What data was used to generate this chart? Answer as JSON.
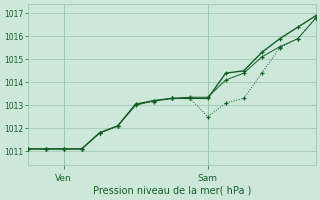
{
  "title": "",
  "xlabel": "Pression niveau de la mer( hPa )",
  "ylabel": "",
  "bg_color": "#cce8d8",
  "grid_color": "#99c4aa",
  "line_color": "#1a5c2a",
  "ylim": [
    1010.4,
    1017.4
  ],
  "yticks": [
    1011,
    1012,
    1013,
    1014,
    1015,
    1016,
    1017
  ],
  "xtick_positions": [
    12,
    60
  ],
  "xtick_labels": [
    "Ven",
    "Sam"
  ],
  "xlim": [
    0,
    96
  ],
  "series1": {
    "x": [
      0,
      6,
      12,
      18,
      24,
      30,
      36,
      42,
      48,
      54,
      60,
      66,
      72,
      78,
      84,
      90,
      96
    ],
    "y": [
      1011.1,
      1011.1,
      1011.1,
      1011.1,
      1011.8,
      1012.1,
      1013.05,
      1013.15,
      1013.3,
      1013.3,
      1012.5,
      1013.1,
      1013.3,
      1014.4,
      1015.5,
      1015.9,
      1016.8
    ]
  },
  "series2": {
    "x": [
      0,
      6,
      12,
      18,
      24,
      30,
      36,
      42,
      48,
      54,
      60,
      66,
      72,
      78,
      84,
      90,
      96
    ],
    "y": [
      1011.1,
      1011.1,
      1011.1,
      1011.1,
      1011.8,
      1012.1,
      1013.0,
      1013.2,
      1013.3,
      1013.35,
      1013.35,
      1014.1,
      1014.4,
      1015.1,
      1015.55,
      1015.9,
      1016.8
    ]
  },
  "series3": {
    "x": [
      0,
      6,
      12,
      18,
      24,
      30,
      36,
      42,
      48,
      54,
      60,
      66,
      72,
      78,
      84,
      90,
      96
    ],
    "y": [
      1011.1,
      1011.1,
      1011.1,
      1011.1,
      1011.8,
      1012.1,
      1013.05,
      1013.2,
      1013.3,
      1013.3,
      1013.3,
      1014.4,
      1014.5,
      1015.3,
      1015.9,
      1016.4,
      1016.9
    ]
  }
}
